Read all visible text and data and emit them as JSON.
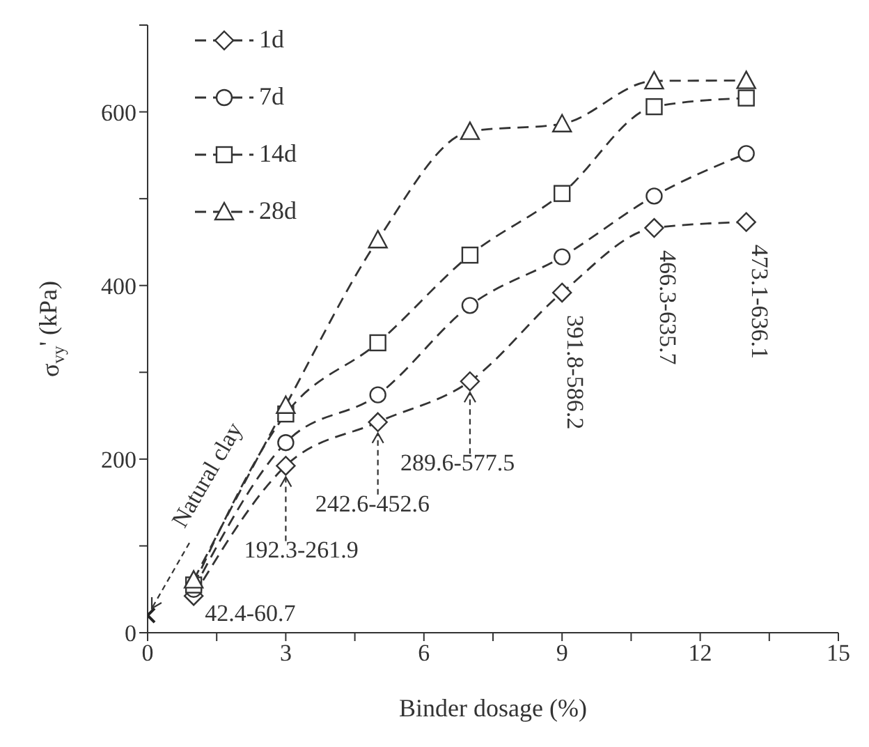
{
  "chart_data": {
    "type": "line",
    "xlabel": "Binder dosage (%)",
    "ylabel": "σ$_{vy}$' (kPa)",
    "xlim": [
      0,
      15
    ],
    "xticks": [
      0,
      {
        "value": 1.5,
        "label": null
      },
      3,
      {
        "value": 4.5,
        "label": null
      },
      6,
      {
        "value": 7.5,
        "label": null
      },
      9,
      {
        "value": 10.5,
        "label": null
      },
      12,
      {
        "value": 13.5,
        "label": null
      },
      15
    ],
    "ylim": [
      0,
      700
    ],
    "yticks": [
      0,
      {
        "value": 100,
        "label": null
      },
      200,
      {
        "value": 300,
        "label": null
      },
      400,
      {
        "value": 500,
        "label": null
      },
      600,
      {
        "value": 700,
        "label": null
      }
    ],
    "x": [
      1,
      3,
      5,
      7,
      9,
      11,
      13
    ],
    "line_style": "dashed",
    "legend": "top left",
    "series": [
      {
        "name": "1d",
        "color": "#333333",
        "marker": "diamond",
        "values": [
          42.4,
          192.3,
          242.6,
          289.6,
          391.8,
          466.3,
          473.1
        ]
      },
      {
        "name": "7d",
        "color": "#333333",
        "marker": "circle",
        "values": [
          50,
          219,
          274,
          377,
          433,
          503,
          552
        ]
      },
      {
        "name": "14d",
        "color": "#333333",
        "marker": "square",
        "values": [
          55,
          252,
          334,
          435,
          506,
          606,
          616
        ]
      },
      {
        "name": "28d",
        "color": "#333333",
        "marker": "triangle",
        "values": [
          60.7,
          261.9,
          452.6,
          577.5,
          586.2,
          635.7,
          636.1
        ]
      },
      {
        "type": "scatter",
        "color": "#222222",
        "marker": "cross",
        "x": [
          0
        ],
        "values": [
          20
        ]
      }
    ],
    "annotations": [
      {
        "text": "Natural clay",
        "x": 0,
        "y": 20
      },
      {
        "text": "42.4-60.7",
        "x": 1,
        "y": 42.4
      },
      {
        "text": "192.3-261.9",
        "x": 3,
        "y": 192.3
      },
      {
        "text": "242.6-452.6",
        "x": 5,
        "y": 242.6
      },
      {
        "text": "289.6-577.5",
        "x": 7,
        "y": 289.6
      },
      {
        "text": "391.8-586.2",
        "x": 9,
        "y": 391.8
      },
      {
        "text": "466.3-635.7",
        "x": 11,
        "y": 466.3
      },
      {
        "text": "473.1-636.1",
        "x": 13,
        "y": 473.1
      }
    ]
  }
}
